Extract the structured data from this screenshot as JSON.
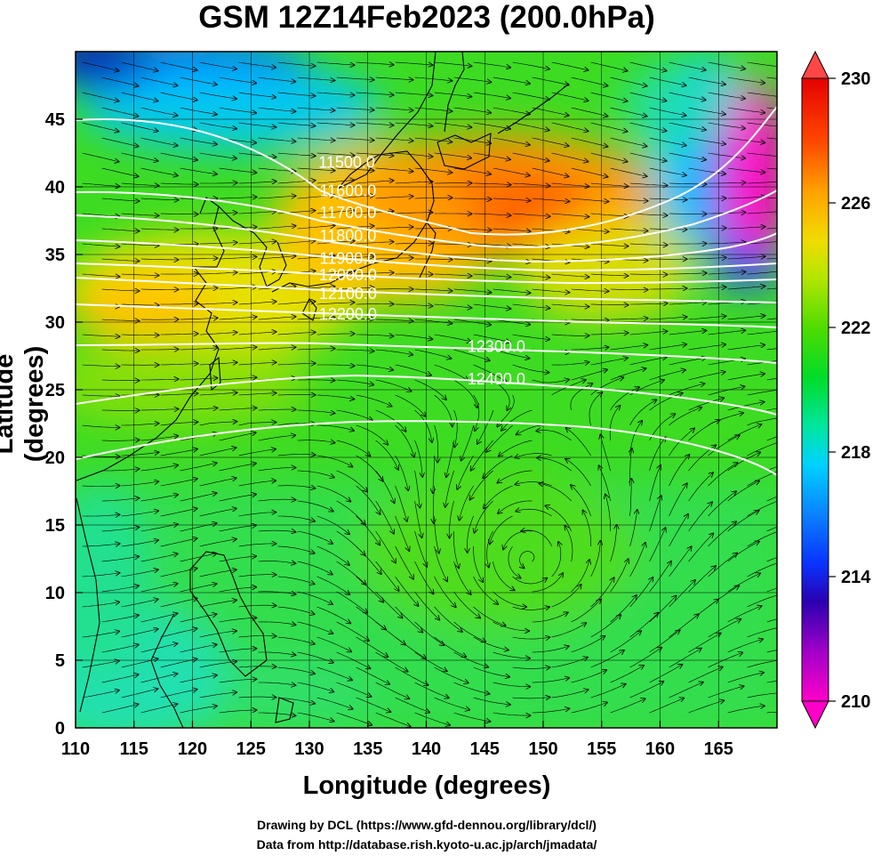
{
  "title": "GSM 12Z14Feb2023 (200.0hPa)",
  "xlabel": "Longitude (degrees)",
  "ylabel": "Latitude  (degrees)",
  "credits": {
    "line1": "Drawing by DCL (https://www.gfd-dennou.org/library/dcl/)",
    "line2": "Data from http://database.rish.kyoto-u.ac.jp/arch/jmadata/"
  },
  "axes": {
    "x_ticks": [
      "110",
      "115",
      "120",
      "125",
      "130",
      "135",
      "140",
      "145",
      "150",
      "155",
      "160",
      "165"
    ],
    "y_ticks": [
      "0",
      "5",
      "10",
      "15",
      "20",
      "25",
      "30",
      "35",
      "40",
      "45"
    ],
    "x_range": [
      110,
      170
    ],
    "y_range": [
      0,
      50
    ]
  },
  "colorbar": {
    "ticks": [
      "210",
      "214",
      "218",
      "222",
      "226",
      "230"
    ],
    "range": [
      210,
      230
    ],
    "colors": [
      "#ff00c8",
      "#7a00c8",
      "#0000c8",
      "#0a64ff",
      "#00dcff",
      "#00e6b4",
      "#00dc28",
      "#50dc00",
      "#a0e600",
      "#f0e000",
      "#ffaa00",
      "#ff5a00",
      "#e60000",
      "#ff4646"
    ]
  },
  "contours": [
    {
      "label": "11500.0",
      "lon": 133.2,
      "lat": 41.4
    },
    {
      "label": "11600.0",
      "lon": 133.3,
      "lat": 39.3
    },
    {
      "label": "11700.0",
      "lon": 133.3,
      "lat": 37.7
    },
    {
      "label": "11800.0",
      "lon": 133.3,
      "lat": 36.0
    },
    {
      "label": "11900.0",
      "lon": 133.3,
      "lat": 34.3
    },
    {
      "label": "12000.0",
      "lon": 133.3,
      "lat": 33.1
    },
    {
      "label": "12100.0",
      "lon": 133.3,
      "lat": 31.7
    },
    {
      "label": "12200.0",
      "lon": 133.3,
      "lat": 30.2
    },
    {
      "label": "12300.0",
      "lon": 146.0,
      "lat": 27.8
    },
    {
      "label": "12400.0",
      "lon": 146.0,
      "lat": 25.4
    }
  ]
}
